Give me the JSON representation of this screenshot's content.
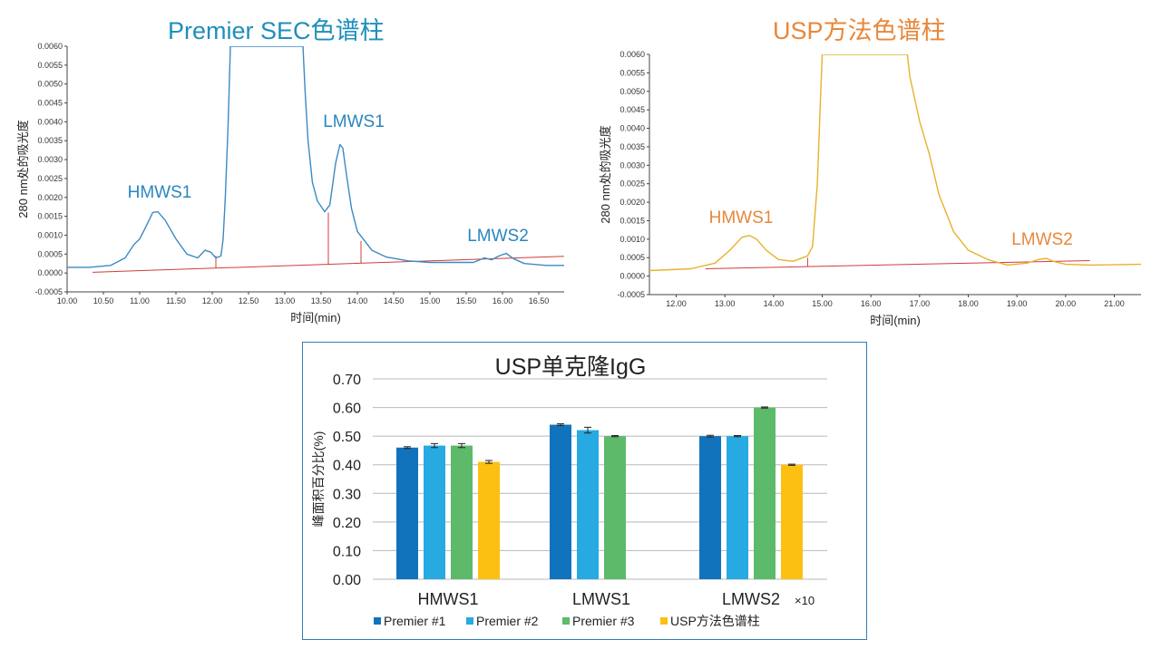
{
  "colors": {
    "left_title": "#1f8fba",
    "right_title": "#e8873a",
    "left_trace": "#3b8ac4",
    "right_trace": "#e8b12c",
    "baseline": "#d03c3c",
    "left_peak_label": "#2a86bf",
    "right_peak_label": "#e8873a",
    "premier1": "#1273bd",
    "premier2": "#27aae1",
    "premier3": "#5cba6a",
    "usp": "#fcc012",
    "frame": "#2f7fb4"
  },
  "chart_data": [
    {
      "type": "line",
      "title": "Premier SEC色谱柱",
      "xlabel": "时间(min)",
      "ylabel": "280 nm处的吸光度",
      "xlim": [
        10.0,
        16.85
      ],
      "ylim": [
        -0.0005,
        0.006
      ],
      "x_ticks": [
        "10.00",
        "10.50",
        "11.00",
        "11.50",
        "12.00",
        "12.50",
        "13.00",
        "13.50",
        "14.00",
        "14.50",
        "15.00",
        "15.50",
        "16.00",
        "16.50"
      ],
      "y_ticks": [
        "-0.0005",
        "0.0000",
        "0.0005",
        "0.0010",
        "0.0015",
        "0.0020",
        "0.0025",
        "0.0030",
        "0.0035",
        "0.0040",
        "0.0045",
        "0.0050",
        "0.0055",
        "0.0060"
      ],
      "peak_labels": [
        "HMWS1",
        "LMWS1",
        "LMWS2"
      ],
      "series": [
        {
          "x": [
            10.0,
            10.3,
            10.6,
            10.8,
            10.92,
            11.0,
            11.08,
            11.18,
            11.25,
            11.35,
            11.5,
            11.65,
            11.8,
            11.9,
            11.98,
            12.05,
            12.12,
            12.15,
            12.18,
            12.22,
            12.25,
            13.25,
            13.28,
            13.32,
            13.38,
            13.45,
            13.55,
            13.62,
            13.7,
            13.76,
            13.8,
            13.85,
            13.92,
            14.0,
            14.08,
            14.2,
            14.4,
            14.7,
            15.0,
            15.3,
            15.6,
            15.75,
            15.85,
            15.95,
            16.05,
            16.15,
            16.3,
            16.6,
            16.85
          ],
          "y": [
            0.00015,
            0.00015,
            0.0002,
            0.0004,
            0.00075,
            0.0009,
            0.0012,
            0.0016,
            0.00162,
            0.0014,
            0.0009,
            0.0005,
            0.0004,
            0.0006,
            0.00055,
            0.0004,
            0.00045,
            0.0009,
            0.002,
            0.004,
            0.006,
            0.006,
            0.0048,
            0.0035,
            0.0024,
            0.0019,
            0.00162,
            0.0018,
            0.0029,
            0.0034,
            0.0033,
            0.0026,
            0.0017,
            0.0011,
            0.0009,
            0.0006,
            0.00042,
            0.00032,
            0.00028,
            0.00028,
            0.00028,
            0.0004,
            0.00035,
            0.00045,
            0.00052,
            0.00038,
            0.00025,
            0.0002,
            0.0002
          ]
        }
      ],
      "baseline": {
        "x": [
          10.35,
          16.85
        ],
        "y": [
          2e-05,
          0.00044
        ]
      },
      "drop_lines": [
        {
          "x": 12.05,
          "y": 0.00045
        },
        {
          "x": 13.6,
          "y": 0.0016
        },
        {
          "x": 14.05,
          "y": 0.00085
        }
      ]
    },
    {
      "type": "line",
      "title": "USP方法色谱柱",
      "xlabel": "时间(min)",
      "ylabel": "280 nm处的吸光度",
      "xlim": [
        11.45,
        21.55
      ],
      "ylim": [
        -0.0005,
        0.006
      ],
      "x_ticks": [
        "12.00",
        "13.00",
        "14.00",
        "15.00",
        "16.00",
        "17.00",
        "18.00",
        "19.00",
        "20.00",
        "21.00"
      ],
      "y_ticks": [
        "-0.0005",
        "0.0000",
        "0.0005",
        "0.0010",
        "0.0015",
        "0.0020",
        "0.0025",
        "0.0030",
        "0.0035",
        "0.0040",
        "0.0045",
        "0.0050",
        "0.0055",
        "0.0060"
      ],
      "peak_labels": [
        "HMWS1",
        "LMWS2"
      ],
      "series": [
        {
          "x": [
            11.45,
            12.3,
            12.8,
            13.1,
            13.35,
            13.5,
            13.65,
            13.85,
            14.1,
            14.4,
            14.7,
            14.8,
            14.9,
            14.97,
            15.0,
            16.75,
            16.8,
            17.0,
            17.2,
            17.4,
            17.7,
            18.0,
            18.4,
            18.8,
            19.2,
            19.45,
            19.6,
            19.75,
            20.0,
            20.5,
            21.55
          ],
          "y": [
            0.00015,
            0.0002,
            0.00035,
            0.0007,
            0.00105,
            0.0011,
            0.001,
            0.0007,
            0.00045,
            0.0004,
            0.00055,
            0.0008,
            0.0025,
            0.005,
            0.006,
            0.006,
            0.0054,
            0.0042,
            0.0033,
            0.0022,
            0.0012,
            0.0007,
            0.00045,
            0.0003,
            0.00035,
            0.00045,
            0.00048,
            0.0004,
            0.00032,
            0.0003,
            0.00032
          ]
        }
      ],
      "baseline": {
        "x": [
          12.6,
          20.5
        ],
        "y": [
          0.0002,
          0.00042
        ]
      },
      "drop_lines": [
        {
          "x": 14.7,
          "y": 0.0005
        }
      ]
    },
    {
      "type": "bar",
      "title": "USP单克隆IgG",
      "ylabel": "峰面积百分比(%)",
      "categories": [
        "HMWS1",
        "LMWS1",
        "LMWS2"
      ],
      "category_suffix": [
        "",
        "",
        "×10"
      ],
      "ylim": [
        0.0,
        0.7
      ],
      "y_ticks": [
        "0.00",
        "0.10",
        "0.20",
        "0.30",
        "0.40",
        "0.50",
        "0.60",
        "0.70"
      ],
      "grid": true,
      "legend_position": "bottom",
      "series": [
        {
          "name": "Premier #1",
          "values": [
            0.46,
            0.54,
            0.5
          ],
          "errors": [
            0.003,
            0.003,
            0.003
          ]
        },
        {
          "name": "Premier #2",
          "values": [
            0.467,
            0.521,
            0.5
          ],
          "errors": [
            0.007,
            0.01,
            0.002
          ]
        },
        {
          "name": "Premier #3",
          "values": [
            0.467,
            0.5,
            0.6
          ],
          "errors": [
            0.007,
            0.002,
            0.002
          ]
        },
        {
          "name": "USP方法色谱柱",
          "values": [
            0.41,
            null,
            0.4
          ],
          "errors": [
            0.005,
            null,
            0.002
          ]
        }
      ]
    }
  ]
}
